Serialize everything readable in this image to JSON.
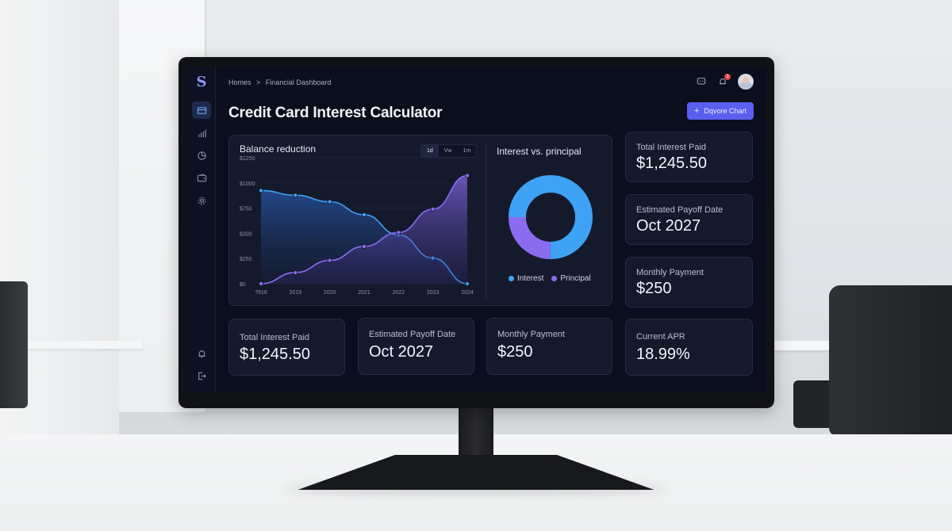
{
  "app": {
    "logo_text": "S",
    "breadcrumb": {
      "home": "Homes",
      "separator": ">",
      "current": "Financial Dashboard"
    },
    "notification_count": "1",
    "page_title": "Credit Card Interest Calculator",
    "primary_button_label": "Dqvore Chart"
  },
  "sidebar": {
    "items": [
      {
        "icon": "credit-card-icon",
        "active": true
      },
      {
        "icon": "bar-chart-icon",
        "active": false
      },
      {
        "icon": "pie-chart-icon",
        "active": false
      },
      {
        "icon": "wallet-icon",
        "active": false
      },
      {
        "icon": "gear-icon",
        "active": false
      }
    ],
    "bottom_items": [
      {
        "icon": "bell-icon"
      },
      {
        "icon": "logout-icon"
      }
    ]
  },
  "balance_chart": {
    "title": "Balance reduction",
    "range_tabs": [
      "1d",
      "Vw",
      "1m"
    ],
    "active_range": "1d"
  },
  "donut": {
    "title": "Interest vs. principal",
    "legend": [
      {
        "label": "Interest",
        "color": "#3ea2f5"
      },
      {
        "label": "Principal",
        "color": "#8b6cf0"
      }
    ]
  },
  "side_stats": [
    {
      "title": "Total Interest Paid",
      "value": "$1,245.50"
    },
    {
      "title": "Estimated Payoff Date",
      "value": "Oct 2027"
    },
    {
      "title": "Monthly Payment",
      "value": "$250"
    }
  ],
  "bottom_stats": [
    {
      "title": "Total Interest Paid",
      "value": "$1,245.50"
    },
    {
      "title": "Estimated Payoff Date",
      "value": "Oct 2027"
    },
    {
      "title": "Monthly Payment",
      "value": "$250"
    },
    {
      "title": "Current APR",
      "value": "18.99%"
    }
  ],
  "chart_data": [
    {
      "type": "area",
      "title": "Balance reduction",
      "categories": [
        "?916",
        "2019",
        "2020",
        "2021",
        "2022",
        "2023",
        "2024"
      ],
      "y_ticks": [
        "$1250",
        "$1000",
        "$750",
        "$300",
        "$250",
        "$0"
      ],
      "series": [
        {
          "values": [
            1000,
            950,
            880,
            740,
            525,
            275,
            0
          ],
          "color": "#3ea2f5"
        },
        {
          "values": [
            0,
            120,
            250,
            400,
            550,
            800,
            1160
          ],
          "color": "#8b6cf0"
        }
      ]
    },
    {
      "type": "pie",
      "title": "Interest vs. principal",
      "categories": [
        "Interest",
        "Principal"
      ],
      "values": [
        75,
        25
      ],
      "colors": [
        "#3ea2f5",
        "#8b6cf0"
      ]
    }
  ]
}
